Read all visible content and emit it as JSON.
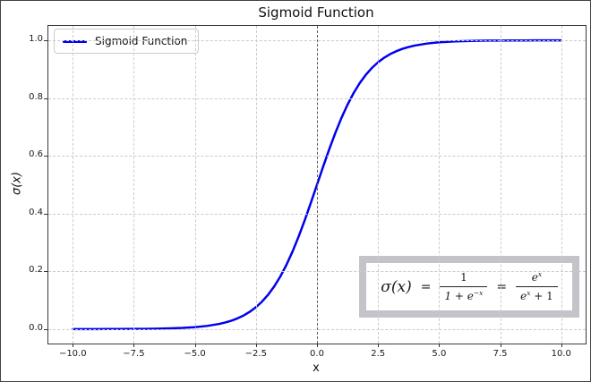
{
  "chart_data": {
    "type": "line",
    "title": "Sigmoid Function",
    "xlabel": "x",
    "ylabel": "σ(x)",
    "xlim": [
      -11,
      11
    ],
    "ylim": [
      -0.05,
      1.05
    ],
    "grid": true,
    "grid_style": "dashed",
    "legend_position": "upper left",
    "x_ticks": {
      "values": [
        -10,
        -7.5,
        -5,
        -2.5,
        0,
        2.5,
        5,
        7.5,
        10
      ],
      "labels": [
        "−10.0",
        "−7.5",
        "−5.0",
        "−2.5",
        "0.0",
        "2.5",
        "5.0",
        "7.5",
        "10.0"
      ]
    },
    "y_ticks": {
      "values": [
        0,
        0.2,
        0.4,
        0.6,
        0.8,
        1.0
      ],
      "labels": [
        "0.0",
        "0.2",
        "0.4",
        "0.6",
        "0.8",
        "1.0"
      ]
    },
    "reference_lines": {
      "vertical_x": 0
    },
    "series": [
      {
        "name": "Sigmoid Function",
        "color": "#0000ee",
        "x": [
          -10,
          -9.5,
          -9,
          -8.5,
          -8,
          -7.5,
          -7,
          -6.5,
          -6,
          -5.5,
          -5,
          -4.5,
          -4,
          -3.75,
          -3.5,
          -3.25,
          -3,
          -2.75,
          -2.5,
          -2.25,
          -2,
          -1.75,
          -1.5,
          -1.25,
          -1,
          -0.75,
          -0.5,
          -0.25,
          0,
          0.25,
          0.5,
          0.75,
          1,
          1.25,
          1.5,
          1.75,
          2,
          2.25,
          2.5,
          2.75,
          3,
          3.25,
          3.5,
          3.75,
          4,
          4.5,
          5,
          5.5,
          6,
          6.5,
          7,
          7.5,
          8,
          8.5,
          9,
          9.5,
          10
        ],
        "y": [
          0.0,
          0.0001,
          0.0001,
          0.0002,
          0.0003,
          0.0006,
          0.0009,
          0.0015,
          0.0025,
          0.0041,
          0.0067,
          0.011,
          0.018,
          0.023,
          0.0293,
          0.0374,
          0.0474,
          0.0601,
          0.0759,
          0.0953,
          0.1192,
          0.148,
          0.1824,
          0.2227,
          0.2689,
          0.3208,
          0.3775,
          0.4378,
          0.5,
          0.5622,
          0.6225,
          0.6792,
          0.7311,
          0.7773,
          0.8176,
          0.852,
          0.8808,
          0.9047,
          0.9241,
          0.9399,
          0.9526,
          0.9626,
          0.9707,
          0.977,
          0.982,
          0.989,
          0.9933,
          0.9959,
          0.9975,
          0.9985,
          0.9991,
          0.9994,
          0.9997,
          0.9998,
          0.9999,
          0.9999,
          1.0
        ]
      }
    ],
    "annotation_equation": {
      "text": "σ(x) = 1/(1+e^−x) = e^x/(e^x+1)",
      "lhs": "σ(x)",
      "equals1": "=",
      "frac1": {
        "num": "1",
        "den_base": "1 + e",
        "den_sup": "−x"
      },
      "equals2": "=",
      "frac2": {
        "num_base": "e",
        "num_sup": "x",
        "den_base": "e",
        "den_sup": "x",
        "den_tail": " + 1"
      }
    }
  },
  "legend": {
    "label": "Sigmoid Function"
  },
  "colors": {
    "curve": "#0000ee",
    "grid": "#cbcbcb",
    "spine": "#3b3b3b",
    "zero_line": "#606060",
    "equation_frame": "#c3c3c9",
    "legend_border": "#cccccc",
    "background": "#ffffff"
  }
}
